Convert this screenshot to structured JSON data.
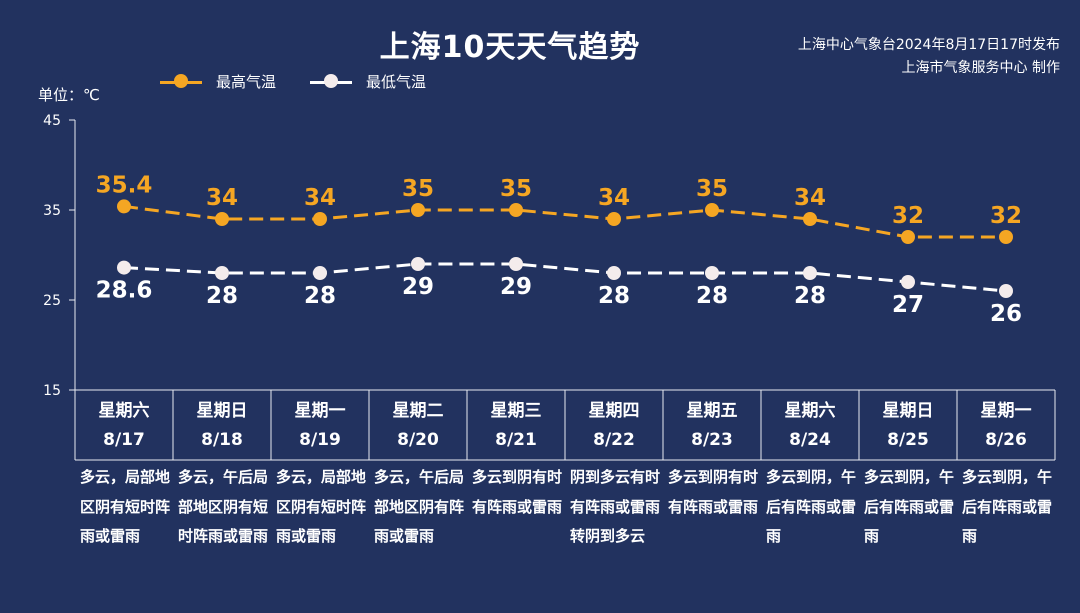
{
  "header": {
    "title": "上海10天天气趋势",
    "source_line1": "上海中心气象台2024年8月17日17时发布",
    "source_line2": "上海市气象服务中心 制作",
    "unit": "单位：℃"
  },
  "colors": {
    "background": "#22325f",
    "high": "#f5a623",
    "low": "#ffffff",
    "axis": "#e8eaf0"
  },
  "chart_data": {
    "type": "line",
    "categories": [
      "8/17",
      "8/18",
      "8/19",
      "8/20",
      "8/21",
      "8/22",
      "8/23",
      "8/24",
      "8/25",
      "8/26"
    ],
    "weekdays": [
      "星期六",
      "星期日",
      "星期一",
      "星期二",
      "星期三",
      "星期四",
      "星期五",
      "星期六",
      "星期日",
      "星期一"
    ],
    "series": [
      {
        "name": "最高气温",
        "values": [
          35.4,
          34,
          34,
          35,
          35,
          34,
          35,
          34,
          32,
          32
        ],
        "labels": [
          "35.4",
          "34",
          "34",
          "35",
          "35",
          "34",
          "35",
          "34",
          "32",
          "32"
        ]
      },
      {
        "name": "最低气温",
        "values": [
          28.6,
          28,
          28,
          29,
          29,
          28,
          28,
          28,
          27,
          26
        ],
        "labels": [
          "28.6",
          "28",
          "28",
          "29",
          "29",
          "28",
          "28",
          "28",
          "27",
          "26"
        ]
      }
    ],
    "ylim": [
      15,
      45
    ],
    "yticks": [
      "15",
      "25",
      "35",
      "45"
    ],
    "line_style": "dashed",
    "legend_position": "top-left",
    "grid": false
  },
  "descriptions": [
    "多云，局部地区阴有短时阵雨或雷雨",
    "多云，午后局部地区阴有短时阵雨或雷雨",
    "多云，局部地区阴有短时阵雨或雷雨",
    "多云，午后局部地区阴有阵雨或雷雨",
    "多云到阴有时有阵雨或雷雨",
    "阴到多云有时有阵雨或雷雨转阴到多云",
    "多云到阴有时有阵雨或雷雨",
    "多云到阴，午后有阵雨或雷雨",
    "多云到阴，午后有阵雨或雷雨",
    "多云到阴，午后有阵雨或雷雨"
  ]
}
